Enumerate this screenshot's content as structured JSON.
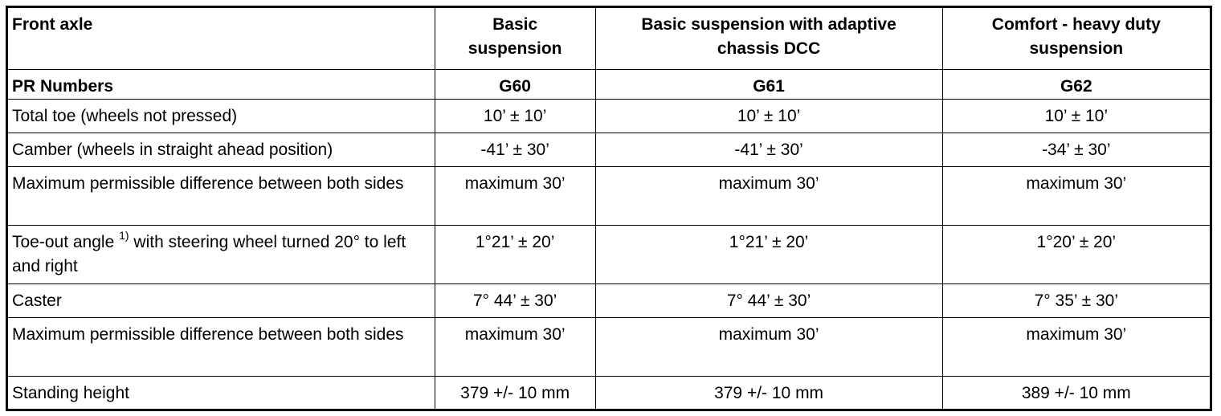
{
  "table": {
    "header": [
      "Front axle",
      "Basic suspension",
      "Basic suspension with adaptive chassis DCC",
      "Comfort - heavy duty suspension"
    ],
    "pr_row": [
      "PR Numbers",
      "G60",
      "G61",
      "G62"
    ],
    "rows": [
      [
        "Total toe (wheels not pressed)",
        "10’ ± 10’",
        "10’ ± 10’",
        "10’ ± 10’"
      ],
      [
        "Camber (wheels in straight ahead position)",
        "-41’ ± 30’",
        "-41’ ± 30’",
        "-34’ ± 30’"
      ],
      [
        "Maximum permissible difference between both sides",
        "maximum 30’",
        "maximum 30’",
        "maximum 30’"
      ],
      [
        {
          "text": "Toe-out angle",
          "footnote": "1)",
          "text_after": "with steering wheel turned 20° to left and right"
        },
        "1°21’ ± 20’",
        "1°21’ ± 20’",
        "1°20’ ± 20’"
      ],
      [
        "Caster",
        "7° 44’ ± 30’",
        "7° 44’ ± 30’",
        "7° 35’ ± 30’"
      ],
      [
        "Maximum permissible difference between both sides",
        "maximum 30’",
        "maximum 30’",
        "maximum 30’"
      ],
      [
        "Standing height",
        "379 +/- 10 mm",
        "379 +/- 10 mm",
        "389 +/- 10 mm"
      ]
    ]
  }
}
